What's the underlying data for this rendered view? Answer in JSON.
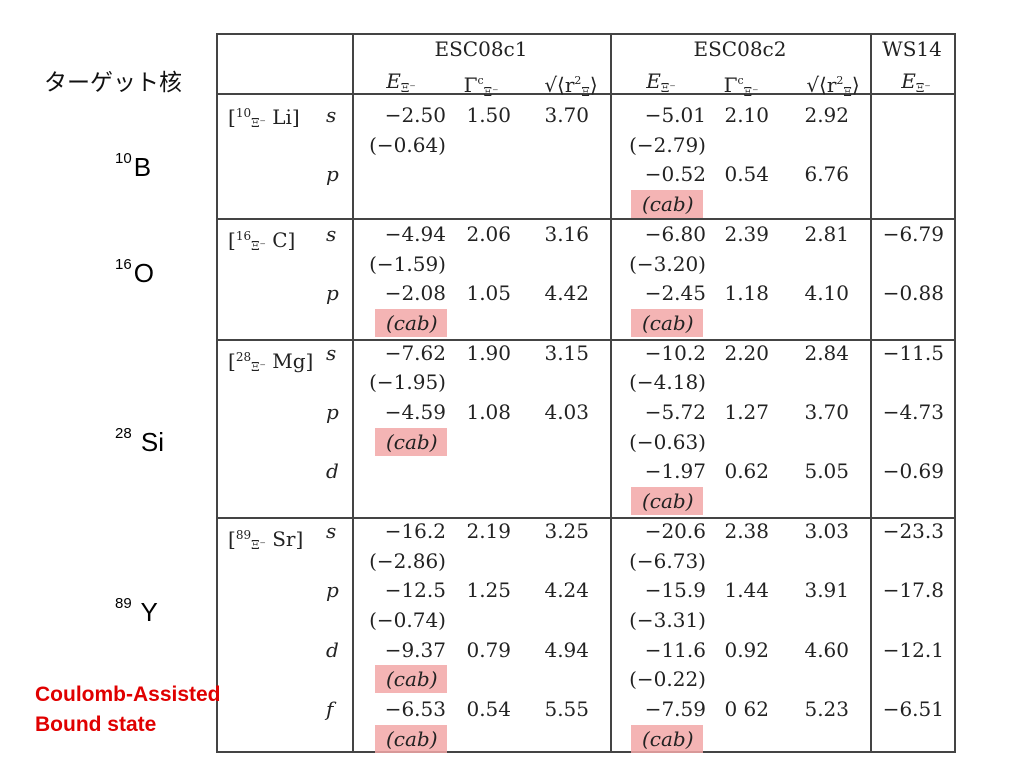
{
  "left": {
    "title": "ターゲット核",
    "nuclei": [
      {
        "mass": "10",
        "symbol": "B"
      },
      {
        "mass": "16",
        "symbol": "O"
      },
      {
        "mass": "28",
        "symbol": " Si"
      },
      {
        "mass": "89",
        "symbol": " Y"
      }
    ],
    "note_line1": "Coulomb-Assisted",
    "note_line2": "Bound state"
  },
  "table": {
    "groups": [
      "ESC08c1",
      "ESC08c2",
      "WS14"
    ],
    "col_E": "E",
    "col_G": "Γ",
    "col_R": "⟨r",
    "xi": "Ξ⁻",
    "hyper": [
      {
        "mass": "10",
        "core": "Li]"
      },
      {
        "mass": "16",
        "core": "C]"
      },
      {
        "mass": "28",
        "core": "Mg]"
      },
      {
        "mass": "89",
        "core": "Sr]"
      }
    ],
    "rows": [
      {
        "l": "s",
        "e1": "−2.50",
        "g1": "1.50",
        "r1": "3.70",
        "e2": "−5.01",
        "g2": "2.10",
        "r2": "2.92",
        "ws": ""
      },
      {
        "l": "",
        "e1": "(−0.64)",
        "g1": "",
        "r1": "",
        "e2": "(−2.79)",
        "g2": "",
        "r2": "",
        "ws": ""
      },
      {
        "l": "p",
        "e1": "",
        "g1": "",
        "r1": "",
        "e2": "−0.52",
        "g2": "0.54",
        "r2": "6.76",
        "ws": ""
      },
      {
        "l": "",
        "e1": "",
        "g1": "",
        "r1": "",
        "e2": "(cab)",
        "g2": "",
        "r2": "",
        "ws": ""
      },
      {
        "l": "s",
        "e1": "−4.94",
        "g1": "2.06",
        "r1": "3.16",
        "e2": "−6.80",
        "g2": "2.39",
        "r2": "2.81",
        "ws": "−6.79"
      },
      {
        "l": "",
        "e1": "(−1.59)",
        "g1": "",
        "r1": "",
        "e2": "(−3.20)",
        "g2": "",
        "r2": "",
        "ws": ""
      },
      {
        "l": "p",
        "e1": "−2.08",
        "g1": "1.05",
        "r1": "4.42",
        "e2": "−2.45",
        "g2": "1.18",
        "r2": "4.10",
        "ws": "−0.88"
      },
      {
        "l": "",
        "e1": "(cab)",
        "g1": "",
        "r1": "",
        "e2": "(cab)",
        "g2": "",
        "r2": "",
        "ws": ""
      },
      {
        "l": "s",
        "e1": "−7.62",
        "g1": "1.90",
        "r1": "3.15",
        "e2": "−10.2",
        "g2": "2.20",
        "r2": "2.84",
        "ws": "−11.5"
      },
      {
        "l": "",
        "e1": "(−1.95)",
        "g1": "",
        "r1": "",
        "e2": "(−4.18)",
        "g2": "",
        "r2": "",
        "ws": ""
      },
      {
        "l": "p",
        "e1": "−4.59",
        "g1": "1.08",
        "r1": "4.03",
        "e2": "−5.72",
        "g2": "1.27",
        "r2": "3.70",
        "ws": "−4.73"
      },
      {
        "l": "",
        "e1": "(cab)",
        "g1": "",
        "r1": "",
        "e2": "(−0.63)",
        "g2": "",
        "r2": "",
        "ws": ""
      },
      {
        "l": "d",
        "e1": "",
        "g1": "",
        "r1": "",
        "e2": "−1.97",
        "g2": "0.62",
        "r2": "5.05",
        "ws": "−0.69"
      },
      {
        "l": "",
        "e1": "",
        "g1": "",
        "r1": "",
        "e2": "(cab)",
        "g2": "",
        "r2": "",
        "ws": ""
      },
      {
        "l": "s",
        "e1": "−16.2",
        "g1": "2.19",
        "r1": "3.25",
        "e2": "−20.6",
        "g2": "2.38",
        "r2": "3.03",
        "ws": "−23.3"
      },
      {
        "l": "",
        "e1": "(−2.86)",
        "g1": "",
        "r1": "",
        "e2": "(−6.73)",
        "g2": "",
        "r2": "",
        "ws": ""
      },
      {
        "l": "p",
        "e1": "−12.5",
        "g1": "1.25",
        "r1": "4.24",
        "e2": "−15.9",
        "g2": "1.44",
        "r2": "3.91",
        "ws": "−17.8"
      },
      {
        "l": "",
        "e1": "(−0.74)",
        "g1": "",
        "r1": "",
        "e2": "(−3.31)",
        "g2": "",
        "r2": "",
        "ws": ""
      },
      {
        "l": "d",
        "e1": "−9.37",
        "g1": "0.79",
        "r1": "4.94",
        "e2": "−11.6",
        "g2": "0.92",
        "r2": "4.60",
        "ws": "−12.1"
      },
      {
        "l": "",
        "e1": "(cab)",
        "g1": "",
        "r1": "",
        "e2": "(−0.22)",
        "g2": "",
        "r2": "",
        "ws": ""
      },
      {
        "l": "f",
        "e1": "−6.53",
        "g1": "0.54",
        "r1": "5.55",
        "e2": "−7.59",
        "g2": "0 62",
        "r2": "5.23",
        "ws": "−6.51"
      },
      {
        "l": "",
        "e1": "(cab)",
        "g1": "",
        "r1": "",
        "e2": "(cab)",
        "g2": "",
        "r2": "",
        "ws": ""
      }
    ],
    "highlight_color": "#f2a7a7"
  }
}
